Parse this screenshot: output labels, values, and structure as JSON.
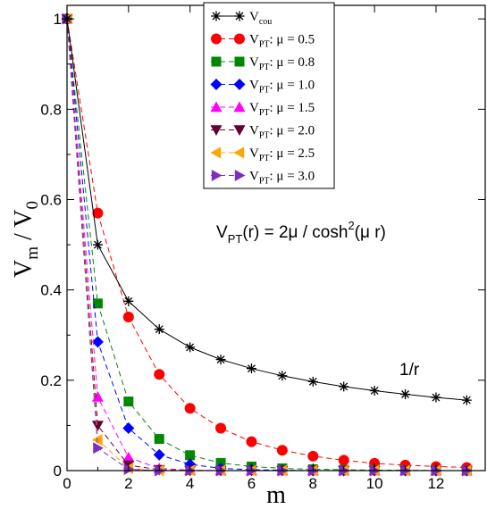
{
  "chart_data": {
    "type": "line",
    "xlabel": "m",
    "ylabel_main": "V",
    "ylabel_sub1": "m",
    "ylabel_mid": " / V",
    "ylabel_sub2": "0",
    "xlim": [
      0,
      13.6
    ],
    "ylim": [
      0,
      1.03
    ],
    "xticks": [
      0,
      2,
      4,
      6,
      8,
      10,
      12
    ],
    "yticks": [
      0,
      0.2,
      0.4,
      0.6,
      0.8,
      1
    ],
    "ytick_labels": [
      "0",
      "0.2",
      "0.4",
      "0.6",
      "0.8",
      "1"
    ],
    "grid": false,
    "legend_position": "top-center",
    "annotation_formula": {
      "pre": "V",
      "sub": "PT",
      "mid": "(r) = 2μ / cosh",
      "sup": "2",
      "post": "(μ r)"
    },
    "annotation_curve": "1/r",
    "series": [
      {
        "legend_main": "V",
        "legend_sub": "cou",
        "legend_rest": "",
        "color": "#000000",
        "marker": "asterisk",
        "dashed": false,
        "x": [
          0,
          1,
          2,
          3,
          4,
          5,
          6,
          7,
          8,
          9,
          10,
          11,
          12,
          13
        ],
        "y": [
          1.0,
          0.5,
          0.375,
          0.313,
          0.273,
          0.246,
          0.226,
          0.21,
          0.197,
          0.186,
          0.177,
          0.169,
          0.162,
          0.156
        ]
      },
      {
        "legend_main": "V",
        "legend_sub": "PT",
        "legend_rest": ": μ = 0.5",
        "color": "#ff0000",
        "marker": "circle",
        "dashed": true,
        "x": [
          0,
          1,
          2,
          3,
          4,
          5,
          6,
          7,
          8,
          9,
          10,
          11,
          12,
          13
        ],
        "y": [
          1.0,
          0.57,
          0.34,
          0.213,
          0.138,
          0.094,
          0.064,
          0.045,
          0.032,
          0.023,
          0.016,
          0.012,
          0.009,
          0.007
        ]
      },
      {
        "legend_main": "V",
        "legend_sub": "PT",
        "legend_rest": ": μ = 0.8",
        "color": "#008800",
        "marker": "square",
        "dashed": true,
        "x": [
          0,
          1,
          2,
          3,
          4,
          5,
          6,
          7,
          8,
          9,
          10,
          11,
          12,
          13
        ],
        "y": [
          1.0,
          0.37,
          0.153,
          0.07,
          0.034,
          0.017,
          0.009,
          0.005,
          0.003,
          0.002,
          0.001,
          0.001,
          0.0,
          0.0
        ]
      },
      {
        "legend_main": "V",
        "legend_sub": "PT",
        "legend_rest": ": μ = 1.0",
        "color": "#0000ff",
        "marker": "diamond",
        "dashed": true,
        "x": [
          0,
          1,
          2,
          3,
          4,
          5,
          6,
          7,
          8,
          9,
          10,
          11,
          12,
          13
        ],
        "y": [
          1.0,
          0.285,
          0.094,
          0.035,
          0.014,
          0.005,
          0.002,
          0.001,
          0.0,
          0.0,
          0.0,
          0.0,
          0.0,
          0.0
        ]
      },
      {
        "legend_main": "V",
        "legend_sub": "PT",
        "legend_rest": ": μ = 1.5",
        "color": "#ff00ff",
        "marker": "triangle-up",
        "dashed": true,
        "x": [
          0,
          1,
          2,
          3,
          4,
          5,
          6,
          7,
          8,
          9,
          10,
          11,
          12,
          13
        ],
        "y": [
          1.0,
          0.163,
          0.029,
          0.005,
          0.001,
          0.0,
          0.0,
          0.0,
          0.0,
          0.0,
          0.0,
          0.0,
          0.0,
          0.0
        ]
      },
      {
        "legend_main": "V",
        "legend_sub": "PT",
        "legend_rest": ": μ = 2.0",
        "color": "#660033",
        "marker": "triangle-down",
        "dashed": true,
        "x": [
          0,
          1,
          2,
          3,
          4,
          5,
          6,
          7,
          8,
          9,
          10,
          11,
          12,
          13
        ],
        "y": [
          1.0,
          0.1,
          0.012,
          0.002,
          0.0,
          0.0,
          0.0,
          0.0,
          0.0,
          0.0,
          0.0,
          0.0,
          0.0,
          0.0
        ]
      },
      {
        "legend_main": "V",
        "legend_sub": "PT",
        "legend_rest": ": μ = 2.5",
        "color": "#ffa500",
        "marker": "triangle-left",
        "dashed": true,
        "x": [
          0,
          1,
          2,
          3,
          4,
          5,
          6,
          7,
          8,
          9,
          10,
          11,
          12,
          13
        ],
        "y": [
          1.0,
          0.068,
          0.005,
          0.0,
          0.0,
          0.0,
          0.0,
          0.0,
          0.0,
          0.0,
          0.0,
          0.0,
          0.0,
          0.0
        ]
      },
      {
        "legend_main": "V",
        "legend_sub": "PT",
        "legend_rest": ": μ = 3.0",
        "color": "#7b2fbe",
        "marker": "triangle-right",
        "dashed": true,
        "x": [
          0,
          1,
          2,
          3,
          4,
          5,
          6,
          7,
          8,
          9,
          10,
          11,
          12,
          13
        ],
        "y": [
          1.0,
          0.05,
          0.003,
          0.0,
          0.0,
          0.0,
          0.0,
          0.0,
          0.0,
          0.0,
          0.0,
          0.0,
          0.0,
          0.0
        ]
      }
    ]
  }
}
